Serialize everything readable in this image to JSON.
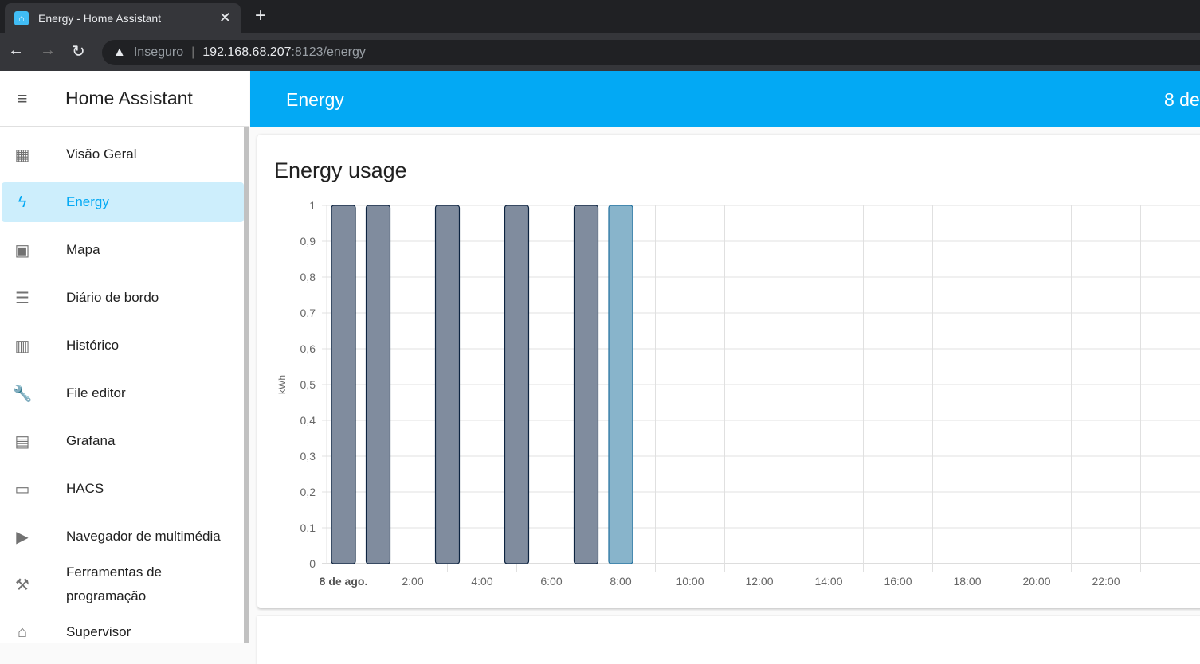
{
  "browser": {
    "tab_title": "Energy - Home Assistant",
    "close": "✕",
    "new_tab": "+",
    "back": "←",
    "forward": "→",
    "reload": "↻",
    "security": "Inseguro",
    "url_host": "192.168.68.207",
    "url_rest": ":8123/energy"
  },
  "sidebar": {
    "title": "Home Assistant",
    "items": [
      {
        "label": "Visão Geral",
        "icon": "dashboard-icon",
        "glyph": "▦"
      },
      {
        "label": "Energy",
        "icon": "lightning-icon",
        "glyph": "ϟ",
        "active": true
      },
      {
        "label": "Mapa",
        "icon": "map-account-icon",
        "glyph": "▣"
      },
      {
        "label": "Diário de bordo",
        "icon": "list-icon",
        "glyph": "☰"
      },
      {
        "label": "Histórico",
        "icon": "chart-box-icon",
        "glyph": "▥"
      },
      {
        "label": "File editor",
        "icon": "wrench-icon",
        "glyph": "🔧"
      },
      {
        "label": "Grafana",
        "icon": "chart-timeline-icon",
        "glyph": "▤"
      },
      {
        "label": "HACS",
        "icon": "hacs-store-icon",
        "glyph": "▭"
      },
      {
        "label": "Navegador de multimédia",
        "icon": "play-box-multiple-icon",
        "glyph": "▶"
      },
      {
        "label": "Ferramentas de programação",
        "icon": "hammer-icon",
        "glyph": "⚒"
      },
      {
        "label": "Supervisor",
        "icon": "home-assistant-icon",
        "glyph": "⌂"
      }
    ]
  },
  "header": {
    "title": "Energy",
    "date": "8 de"
  },
  "card": {
    "title": "Energy usage"
  },
  "chart_data": {
    "type": "bar",
    "title": "",
    "xlabel": "",
    "ylabel": "kWh",
    "ylim": [
      0,
      1
    ],
    "grid": true,
    "yticks": [
      "0",
      "0,1",
      "0,2",
      "0,3",
      "0,4",
      "0,5",
      "0,6",
      "0,7",
      "0,8",
      "0,9",
      "1"
    ],
    "xticks": [
      {
        "hour": 0,
        "label": "8 de ago.",
        "bold": true
      },
      {
        "hour": 2,
        "label": "2:00"
      },
      {
        "hour": 4,
        "label": "4:00"
      },
      {
        "hour": 6,
        "label": "6:00"
      },
      {
        "hour": 8,
        "label": "8:00"
      },
      {
        "hour": 10,
        "label": "10:00"
      },
      {
        "hour": 12,
        "label": "12:00"
      },
      {
        "hour": 14,
        "label": "14:00"
      },
      {
        "hour": 16,
        "label": "16:00"
      },
      {
        "hour": 18,
        "label": "18:00"
      },
      {
        "hour": 20,
        "label": "20:00"
      },
      {
        "hour": 22,
        "label": "22:00"
      }
    ],
    "bars": [
      {
        "hour": 0,
        "value": 1
      },
      {
        "hour": 1,
        "value": 1
      },
      {
        "hour": 3,
        "value": 1
      },
      {
        "hour": 5,
        "value": 1
      },
      {
        "hour": 7,
        "value": 1
      },
      {
        "hour": 8,
        "value": 1,
        "highlight": true
      }
    ],
    "colors": {
      "bar": "#808c9e",
      "bar_border": "#0c2340",
      "highlight": "#88b4cb",
      "highlight_border": "#1f6f9e"
    }
  }
}
